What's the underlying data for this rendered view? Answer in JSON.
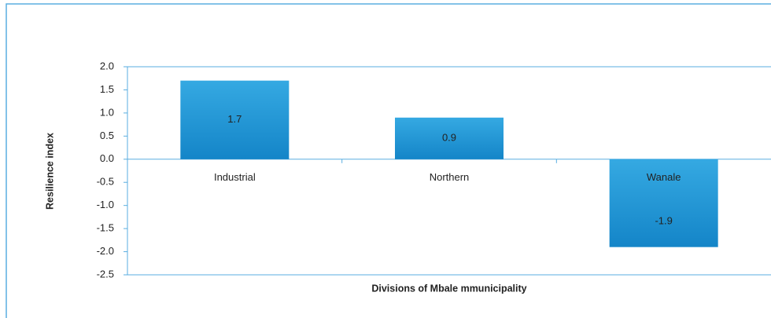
{
  "chart_data": {
    "type": "bar",
    "x_label": "Divisions of Mbale mmunicipality",
    "y_label": "Resilience index",
    "categories": [
      "Industrial",
      "Northern",
      "Wanale"
    ],
    "values": [
      1.7,
      0.9,
      -1.9
    ],
    "color": "#1b8fd2",
    "ylim": [
      -2.5,
      2.0
    ],
    "yticks": [
      {
        "value": -2.5,
        "label": "-2.5"
      },
      {
        "value": -2,
        "label": "-2.0"
      },
      -1.5,
      {
        "value": -1,
        "label": "-1.0"
      },
      -0.5,
      {
        "value": 0,
        "label": "0.0"
      },
      0.5,
      {
        "value": 1,
        "label": "1.0"
      },
      1.5,
      {
        "value": 2,
        "label": "2.0"
      }
    ]
  }
}
